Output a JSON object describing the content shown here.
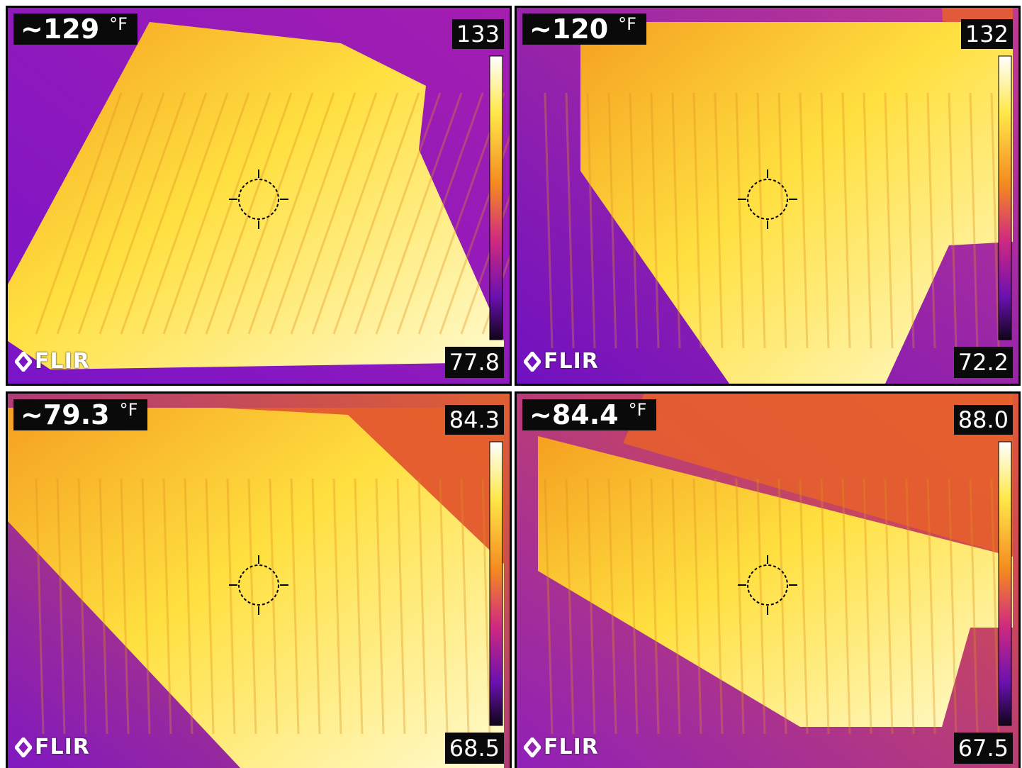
{
  "panels": [
    {
      "spot": "~129",
      "unit": "°F",
      "max": "133",
      "min": "77.8",
      "logo": "FLIR"
    },
    {
      "spot": "~120",
      "unit": "°F",
      "max": "132",
      "min": "72.2",
      "logo": "FLIR"
    },
    {
      "spot": "~79.3",
      "unit": "°F",
      "max": "84.3",
      "min": "68.5",
      "logo": "FLIR"
    },
    {
      "spot": "~84.4",
      "unit": "°F",
      "max": "88.0",
      "min": "67.5",
      "logo": "FLIR"
    }
  ]
}
